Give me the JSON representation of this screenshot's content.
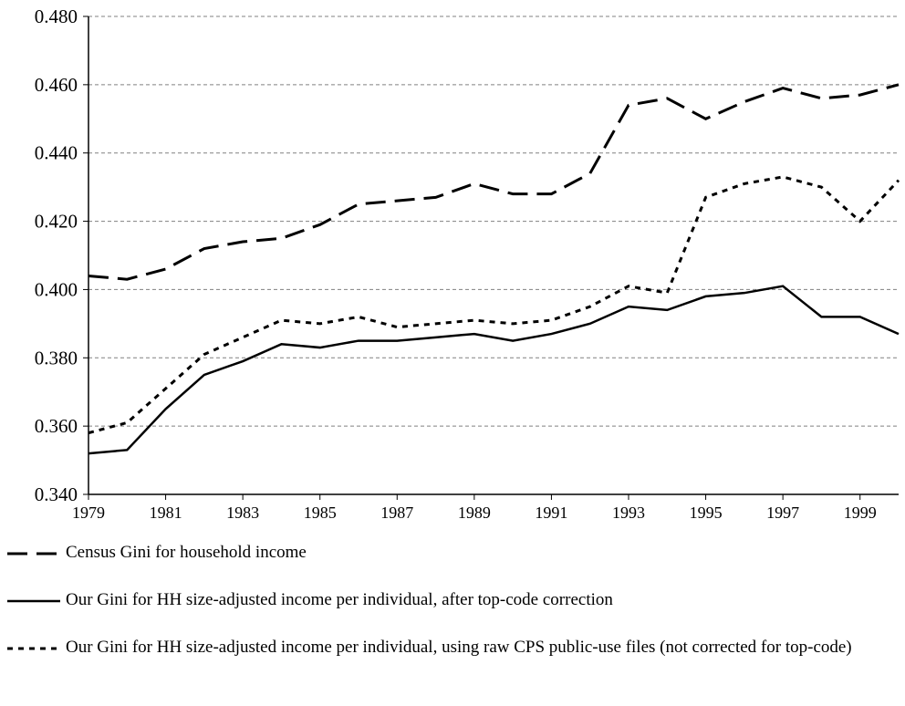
{
  "chart_data": {
    "type": "line",
    "x": [
      1979,
      1980,
      1981,
      1982,
      1983,
      1984,
      1985,
      1986,
      1987,
      1988,
      1989,
      1990,
      1991,
      1992,
      1993,
      1994,
      1995,
      1996,
      1997,
      1998,
      1999,
      2000
    ],
    "xlim": [
      1979,
      2000
    ],
    "xticks": [
      1979,
      1981,
      1983,
      1985,
      1987,
      1989,
      1991,
      1993,
      1995,
      1997,
      1999
    ],
    "ylim": [
      0.34,
      0.48
    ],
    "yticks": [
      {
        "value": 0.34,
        "label": "0.340"
      },
      {
        "value": 0.36,
        "label": "0.360"
      },
      {
        "value": 0.38,
        "label": "0.380"
      },
      {
        "value": 0.4,
        "label": "0.400"
      },
      {
        "value": 0.42,
        "label": "0.420"
      },
      {
        "value": 0.44,
        "label": "0.440"
      },
      {
        "value": 0.46,
        "label": "0.460"
      },
      {
        "value": 0.48,
        "label": "0.480"
      }
    ],
    "grid": true,
    "series": [
      {
        "name": "Census Gini for household income",
        "color": "#000000",
        "style": "dashed",
        "values": [
          0.404,
          0.403,
          0.406,
          0.412,
          0.414,
          0.415,
          0.419,
          0.425,
          0.426,
          0.427,
          0.431,
          0.428,
          0.428,
          0.434,
          0.454,
          0.456,
          0.45,
          0.455,
          0.459,
          0.456,
          0.457,
          0.46
        ]
      },
      {
        "name": "Our Gini for HH size-adjusted income per  individual, after top-code correction",
        "color": "#000000",
        "style": "solid",
        "values": [
          0.352,
          0.353,
          0.365,
          0.375,
          0.379,
          0.384,
          0.383,
          0.385,
          0.385,
          0.386,
          0.387,
          0.385,
          0.387,
          0.39,
          0.395,
          0.394,
          0.398,
          0.399,
          0.401,
          0.392,
          0.392,
          0.387
        ]
      },
      {
        "name": "Our Gini for HH size-adjusted income per individual, using raw CPS public-use files (not corrected for top-code)",
        "color": "#000000",
        "style": "dotted",
        "values": [
          0.358,
          0.361,
          0.371,
          0.381,
          0.386,
          0.391,
          0.39,
          0.392,
          0.389,
          0.39,
          0.391,
          0.39,
          0.391,
          0.395,
          0.401,
          0.399,
          0.427,
          0.431,
          0.433,
          0.43,
          0.42,
          0.432
        ]
      }
    ]
  }
}
